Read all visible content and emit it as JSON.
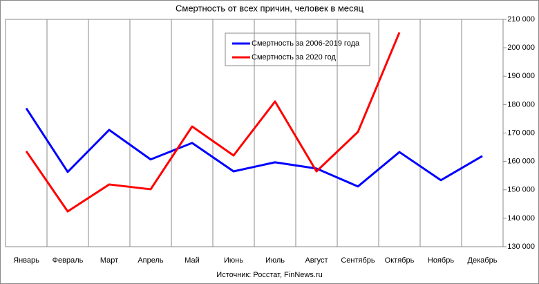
{
  "chart_data": {
    "type": "line",
    "title": "Смертность от всех причин, человек в месяц",
    "source": "Источник: Росстат, FinNews.ru",
    "categories": [
      "Январь",
      "Февраль",
      "Март",
      "Апрель",
      "Май",
      "Июнь",
      "Июль",
      "Август",
      "Сентябрь",
      "Октябрь",
      "Ноябрь",
      "Декабрь"
    ],
    "series": [
      {
        "name": "Смертность за 2006-2019  года",
        "color": "#0000ff",
        "values": [
          178700,
          156300,
          171100,
          160700,
          166500,
          156500,
          159700,
          157500,
          151200,
          163300,
          153400,
          161900
        ]
      },
      {
        "name": "Смертность за 2020 год",
        "color": "#ff0000",
        "values": [
          163600,
          142400,
          151900,
          150200,
          172300,
          162100,
          181100,
          156500,
          170400,
          205400,
          null,
          null
        ]
      }
    ],
    "ylim": [
      130000,
      210000
    ],
    "yticks": [
      {
        "value": 130000,
        "label": "130 000"
      },
      {
        "value": 140000,
        "label": "140 000"
      },
      {
        "value": 150000,
        "label": "150 000"
      },
      {
        "value": 160000,
        "label": "160 000"
      },
      {
        "value": 170000,
        "label": "170 000"
      },
      {
        "value": 180000,
        "label": "180 000"
      },
      {
        "value": 190000,
        "label": "190 000"
      },
      {
        "value": 200000,
        "label": "200 000"
      },
      {
        "value": 210000,
        "label": "210 000"
      }
    ],
    "grid": "vertical"
  }
}
